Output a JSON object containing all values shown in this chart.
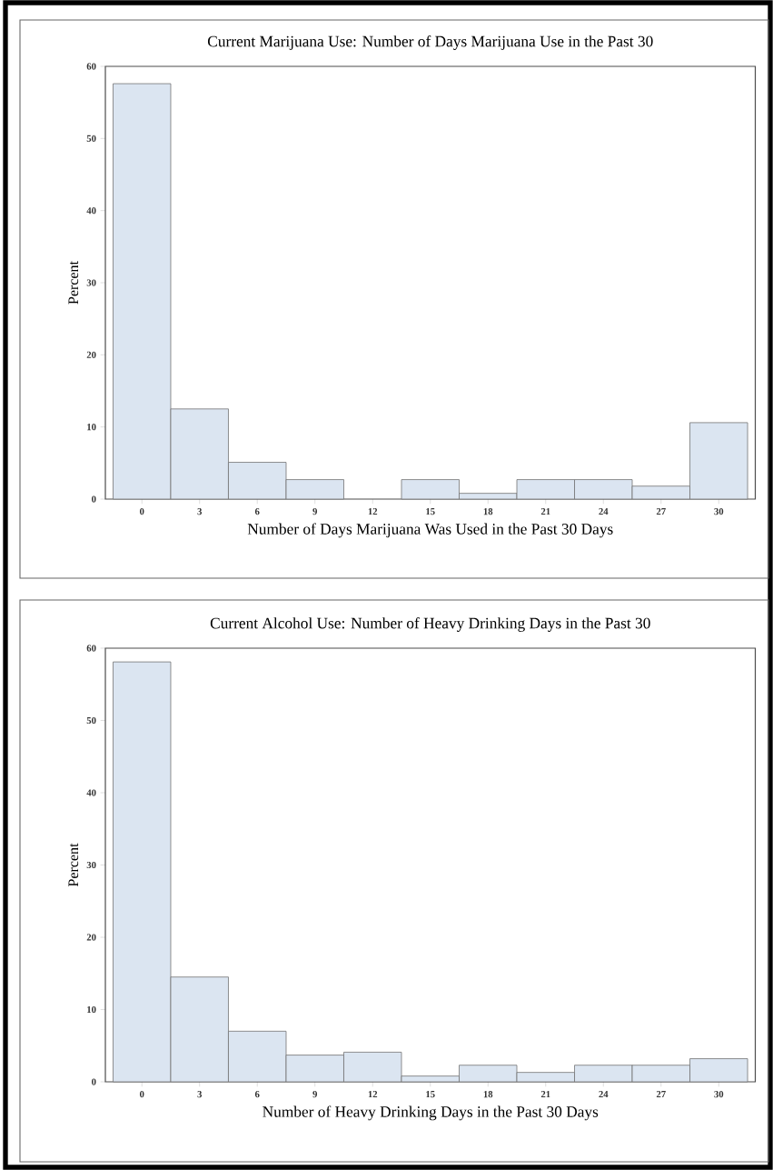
{
  "chart_data": [
    {
      "type": "histogram",
      "title": "Current Marijuana Use: Number of Days Marijuana Use in the Past 30",
      "xlabel": "Number of Days Marijuana Was Used in the Past 30 Days",
      "ylabel": "Percent",
      "color": "#dbe5f1",
      "bins": [
        -1.5,
        1.5,
        4.5,
        7.5,
        10.5,
        13.5,
        16.5,
        19.5,
        22.5,
        25.5,
        28.5,
        31.5
      ],
      "values": [
        57.6,
        12.5,
        5.1,
        2.7,
        0,
        2.7,
        0.8,
        2.7,
        2.7,
        1.8,
        10.6
      ],
      "xlim": [
        -1.9,
        31.9
      ],
      "ylim": [
        0,
        60
      ],
      "xticks": [
        0,
        3,
        6,
        9,
        12,
        15,
        18,
        21,
        24,
        27,
        30
      ],
      "yticks": [
        0,
        10,
        20,
        30,
        40,
        50,
        60
      ],
      "grid": false
    },
    {
      "type": "histogram",
      "title": "Current Alcohol Use: Number of Heavy Drinking Days in the Past 30",
      "xlabel": "Number of Heavy Drinking Days in the Past 30 Days",
      "ylabel": "Percent",
      "color": "#dbe5f1",
      "bins": [
        -1.5,
        1.5,
        4.5,
        7.5,
        10.5,
        13.5,
        16.5,
        19.5,
        22.5,
        25.5,
        28.5,
        31.5
      ],
      "values": [
        58.1,
        14.5,
        7.0,
        3.7,
        4.1,
        0.8,
        2.3,
        1.3,
        2.3,
        2.3,
        3.2
      ],
      "xlim": [
        -1.9,
        31.9
      ],
      "ylim": [
        0,
        60
      ],
      "xticks": [
        0,
        3,
        6,
        9,
        12,
        15,
        18,
        21,
        24,
        27,
        30
      ],
      "yticks": [
        0,
        10,
        20,
        30,
        40,
        50,
        60
      ],
      "grid": false
    }
  ]
}
